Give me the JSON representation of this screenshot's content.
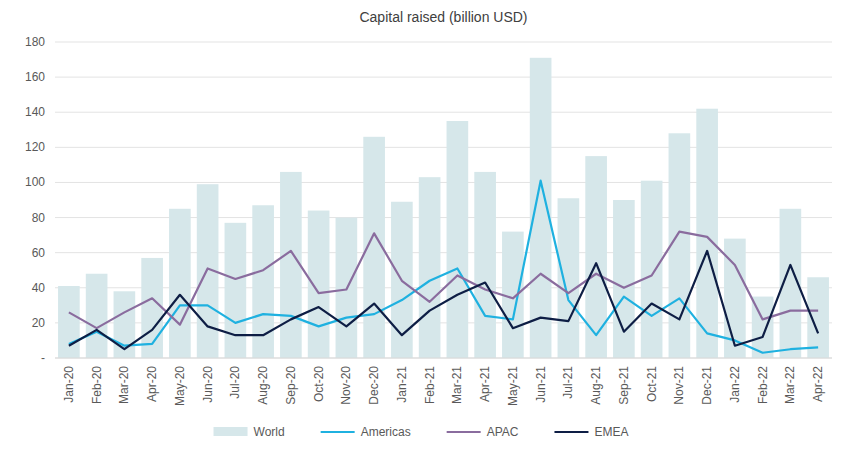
{
  "chart_data": {
    "type": "bar",
    "title": "Capital raised (billion USD)",
    "categories": [
      "Jan-20",
      "Feb-20",
      "Mar-20",
      "Apr-20",
      "May-20",
      "Jun-20",
      "Jul-20",
      "Aug-20",
      "Sep-20",
      "Oct-20",
      "Nov-20",
      "Dec-20",
      "Jan-21",
      "Feb-21",
      "Mar-21",
      "Apr-21",
      "May-21",
      "Jun-21",
      "Jul-21",
      "Aug-21",
      "Sep-21",
      "Oct-21",
      "Nov-21",
      "Dec-21",
      "Jan-22",
      "Feb-22",
      "Mar-22",
      "Apr-22"
    ],
    "series": [
      {
        "name": "World",
        "type": "bar",
        "color": "#d6e7ea",
        "values": [
          41,
          48,
          38,
          57,
          85,
          99,
          77,
          87,
          106,
          84,
          80,
          126,
          89,
          103,
          135,
          106,
          72,
          171,
          91,
          115,
          90,
          101,
          128,
          142,
          68,
          35,
          85,
          46
        ]
      },
      {
        "name": "Americas",
        "type": "line",
        "color": "#1fb1e0",
        "values": [
          8,
          15,
          7,
          8,
          30,
          30,
          20,
          25,
          24,
          18,
          23,
          25,
          33,
          44,
          51,
          24,
          22,
          101,
          33,
          13,
          35,
          24,
          34,
          14,
          10,
          3,
          5,
          6
        ]
      },
      {
        "name": "APAC",
        "type": "line",
        "color": "#8a6c9e",
        "values": [
          26,
          17,
          26,
          34,
          19,
          51,
          45,
          50,
          61,
          37,
          39,
          71,
          44,
          32,
          47,
          39,
          34,
          48,
          37,
          48,
          40,
          47,
          72,
          69,
          53,
          22,
          27,
          27
        ]
      },
      {
        "name": "EMEA",
        "type": "line",
        "color": "#0e1e45",
        "values": [
          7,
          16,
          5,
          16,
          36,
          18,
          13,
          13,
          22,
          29,
          18,
          31,
          13,
          27,
          36,
          43,
          17,
          23,
          21,
          54,
          15,
          31,
          22,
          61,
          7,
          12,
          53,
          14
        ]
      }
    ],
    "ylim": [
      0,
      180
    ],
    "yticks": [
      {
        "value": 0,
        "label": "-"
      },
      20,
      40,
      60,
      80,
      100,
      120,
      140,
      160,
      180
    ],
    "grid": true,
    "legend": "bottom"
  }
}
